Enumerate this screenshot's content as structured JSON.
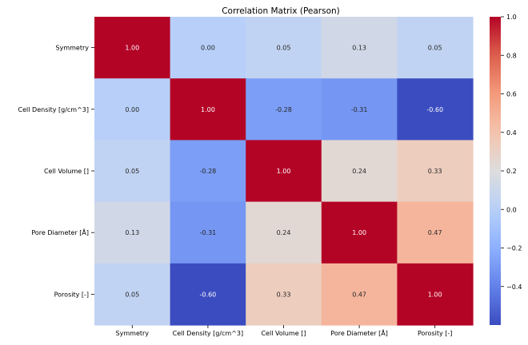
{
  "chart_data": {
    "type": "heatmap",
    "title": "Correlation Matrix (Pearson)",
    "rows": [
      "Symmetry",
      "Cell Density [g/cm^3]",
      "Cell Volume []",
      "Pore Diameter [Å]",
      "Porosity [-]"
    ],
    "columns": [
      "Symmetry",
      "Cell Density [g/cm^3]",
      "Cell Volume []",
      "Pore Diameter [Å]",
      "Porosity [-]"
    ],
    "values": [
      [
        1.0,
        0.0,
        0.05,
        0.13,
        0.05
      ],
      [
        0.0,
        1.0,
        -0.28,
        -0.31,
        -0.6
      ],
      [
        0.05,
        -0.28,
        1.0,
        0.24,
        0.33
      ],
      [
        0.13,
        -0.31,
        0.24,
        1.0,
        0.47
      ],
      [
        0.05,
        -0.6,
        0.33,
        0.47,
        1.0
      ]
    ],
    "value_format": "0.00",
    "colormap": "coolwarm",
    "color_range": [
      -0.6,
      1.0
    ],
    "colorbar": {
      "ticks": [
        1.0,
        0.8,
        0.6,
        0.4,
        0.2,
        0.0,
        -0.2,
        -0.4
      ],
      "tick_labels": [
        "1.0",
        "0.8",
        "0.6",
        "0.4",
        "0.2",
        "0.0",
        "−0.2",
        "−0.4"
      ]
    }
  }
}
